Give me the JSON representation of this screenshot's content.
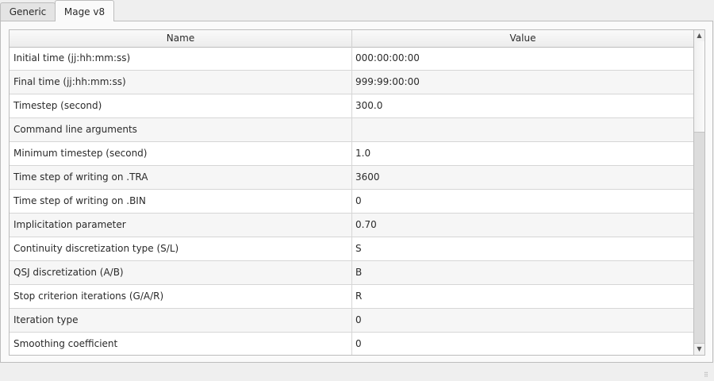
{
  "tabs": [
    {
      "label": "Generic",
      "active": false
    },
    {
      "label": "Mage v8",
      "active": true
    }
  ],
  "table": {
    "columns": [
      "Name",
      "Value"
    ],
    "rows": [
      {
        "name": "Initial time (jj:hh:mm:ss)",
        "value": "000:00:00:00"
      },
      {
        "name": "Final time (jj:hh:mm:ss)",
        "value": "999:99:00:00"
      },
      {
        "name": "Timestep (second)",
        "value": "300.0"
      },
      {
        "name": "Command line arguments",
        "value": ""
      },
      {
        "name": "Minimum timestep (second)",
        "value": "1.0"
      },
      {
        "name": "Time step of writing on .TRA",
        "value": "3600"
      },
      {
        "name": "Time step of writing on .BIN",
        "value": "0"
      },
      {
        "name": "Implicitation parameter",
        "value": "0.70"
      },
      {
        "name": "Continuity discretization type (S/L)",
        "value": "S"
      },
      {
        "name": "QSJ discretization (A/B)",
        "value": "B"
      },
      {
        "name": "Stop criterion iterations (G/A/R)",
        "value": "R"
      },
      {
        "name": "Iteration type",
        "value": "0"
      },
      {
        "name": "Smoothing coefficient",
        "value": "0"
      }
    ]
  },
  "scrollbar": {
    "up_icon": "triangle-up",
    "down_icon": "triangle-down",
    "position_fraction": 0.0
  }
}
